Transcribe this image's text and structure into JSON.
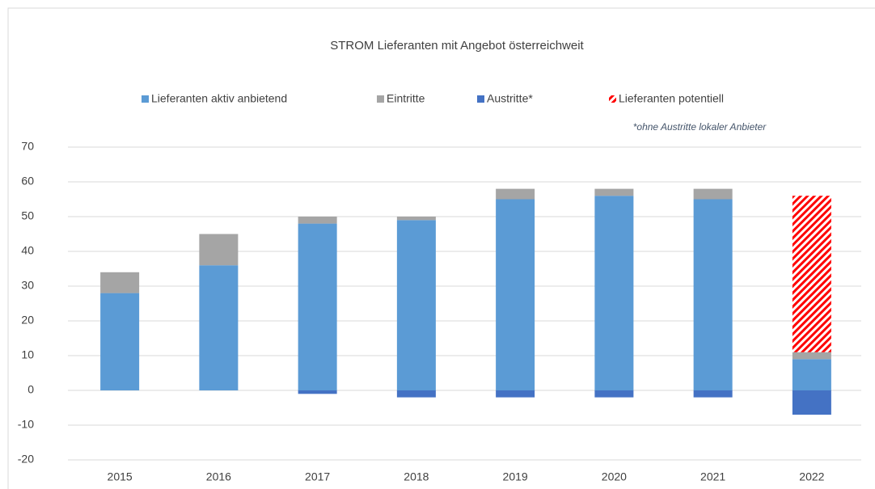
{
  "chart_data": {
    "type": "stacked_bar",
    "title": "STROM Lieferanten mit Angebot österreichweit",
    "annotation": "*ohne Austritte lokaler Anbieter",
    "categories": [
      "2015",
      "2016",
      "2017",
      "2018",
      "2019",
      "2020",
      "2021",
      "2022"
    ],
    "series": [
      {
        "name": "Lieferanten aktiv anbietend",
        "color": "#5b9bd5",
        "values": [
          28,
          36,
          48,
          49,
          55,
          56,
          55,
          9
        ]
      },
      {
        "name": "Eintritte",
        "color": "#a5a5a5",
        "values": [
          6,
          9,
          2,
          1,
          3,
          2,
          3,
          2
        ]
      },
      {
        "name": "Austritte*",
        "color": "#4472c4",
        "values": [
          0,
          0,
          -1,
          -2,
          -2,
          -2,
          -2,
          -7
        ]
      },
      {
        "name": "Lieferanten potentiell",
        "color": "#ff0000",
        "hatch": true,
        "values": [
          0,
          0,
          0,
          0,
          0,
          0,
          0,
          45
        ]
      }
    ],
    "ylim": [
      -20,
      70
    ],
    "yticks": [
      -20,
      -10,
      0,
      10,
      20,
      30,
      40,
      50,
      60,
      70
    ],
    "grid": true,
    "legend": "top"
  }
}
